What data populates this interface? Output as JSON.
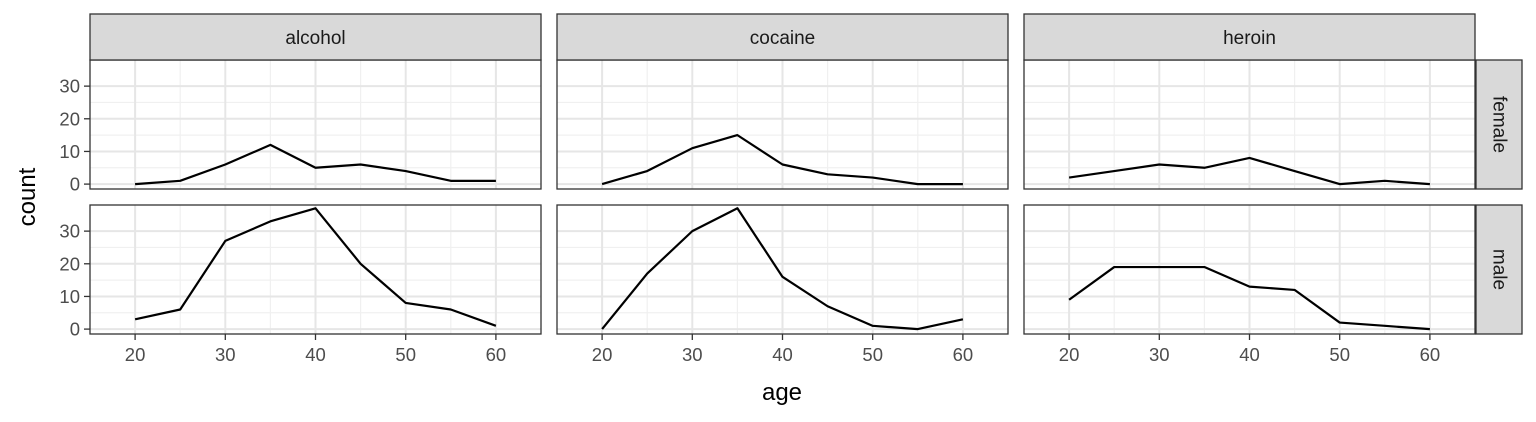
{
  "chart_data": {
    "type": "line",
    "xlabel": "age",
    "ylabel": "count",
    "col_facets": [
      "alcohol",
      "cocaine",
      "heroin"
    ],
    "row_facets": [
      "female",
      "male"
    ],
    "x": [
      20,
      25,
      30,
      35,
      40,
      45,
      50,
      55,
      60
    ],
    "xlim": [
      15,
      65
    ],
    "ylim": [
      -1.5,
      38
    ],
    "x_ticks": [
      20,
      30,
      40,
      50,
      60
    ],
    "y_ticks": [
      0,
      10,
      20,
      30
    ],
    "grid": true,
    "panels": [
      {
        "col": "alcohol",
        "row": "female",
        "values": [
          0,
          1,
          6,
          12,
          5,
          6,
          4,
          1,
          1
        ]
      },
      {
        "col": "cocaine",
        "row": "female",
        "values": [
          0,
          4,
          11,
          15,
          6,
          3,
          2,
          0,
          0
        ]
      },
      {
        "col": "heroin",
        "row": "female",
        "values": [
          2,
          4,
          6,
          5,
          8,
          4,
          0,
          1,
          0
        ]
      },
      {
        "col": "alcohol",
        "row": "male",
        "values": [
          3,
          6,
          27,
          33,
          37,
          20,
          8,
          6,
          1
        ]
      },
      {
        "col": "cocaine",
        "row": "male",
        "values": [
          0,
          17,
          30,
          37,
          16,
          7,
          1,
          0,
          3
        ]
      },
      {
        "col": "heroin",
        "row": "male",
        "values": [
          9,
          19,
          19,
          19,
          13,
          12,
          2,
          1,
          0
        ]
      }
    ]
  }
}
